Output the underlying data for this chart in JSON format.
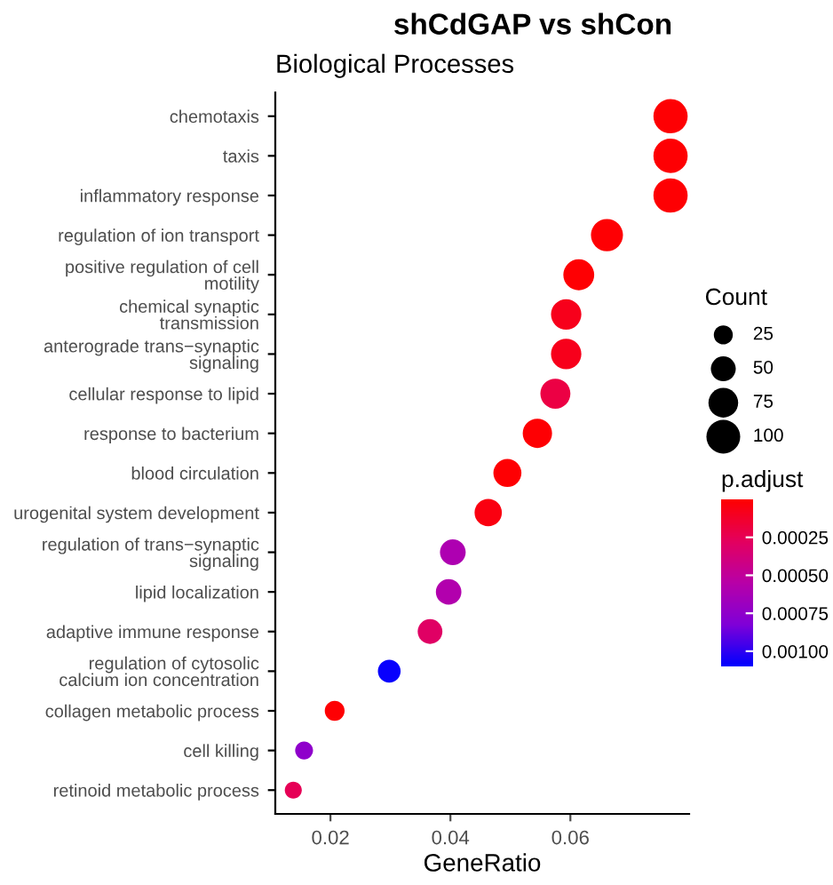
{
  "chart_data": {
    "type": "bubble",
    "title": "shCdGAP vs shCon",
    "subtitle": "Biological Processes",
    "xlabel": "GeneRatio",
    "legend_title": "Count",
    "clabel": "p.adjust",
    "categories": [
      "chemotaxis",
      "taxis",
      "inflammatory response",
      "regulation of ion transport",
      "positive regulation of cell motility",
      "chemical synaptic transmission",
      "anterograde trans−synaptic signaling",
      "cellular response to lipid",
      "response to bacterium",
      "blood circulation",
      "urogenital system development",
      "regulation of trans−synaptic signaling",
      "lipid localization",
      "adaptive immune response",
      "regulation of cytosolic calcium ion concentration",
      "collagen metabolic process",
      "cell killing",
      "retinoid metabolic process"
    ],
    "orientation": "horizontal",
    "values": [
      0.0767,
      0.0767,
      0.0767,
      0.0661,
      0.0614,
      0.0593,
      0.0593,
      0.0575,
      0.0545,
      0.0495,
      0.0463,
      0.0404,
      0.0397,
      0.0366,
      0.0298,
      0.0207,
      0.0156,
      0.0138
    ],
    "sizes": [
      103,
      103,
      103,
      89,
      82,
      79,
      79,
      77,
      73,
      66,
      62,
      54,
      53,
      49,
      40,
      28,
      21,
      18
    ],
    "size_legend": [
      25,
      50,
      75,
      100
    ],
    "cvalues": [
      1e-05,
      1e-05,
      1e-05,
      1e-05,
      1e-05,
      8e-05,
      8e-05,
      0.0002,
      1e-05,
      1e-05,
      5e-05,
      0.0006,
      0.00058,
      0.0003,
      0.00108,
      1e-05,
      0.00075,
      0.00025
    ],
    "clim": [
      0,
      0.0011
    ],
    "cticks": [
      {
        "value": 0.00025,
        "label": "0.00025"
      },
      {
        "value": 0.0005,
        "label": "0.00050"
      },
      {
        "value": 0.00075,
        "label": "0.00075"
      },
      {
        "value": 0.001,
        "label": "0.00100"
      }
    ],
    "xlim": [
      0.0108,
      0.0798
    ],
    "xticks": [
      {
        "value": 0.02,
        "label": "0.02"
      },
      {
        "value": 0.04,
        "label": "0.04"
      },
      {
        "value": 0.06,
        "label": "0.06"
      }
    ],
    "grid": false
  }
}
